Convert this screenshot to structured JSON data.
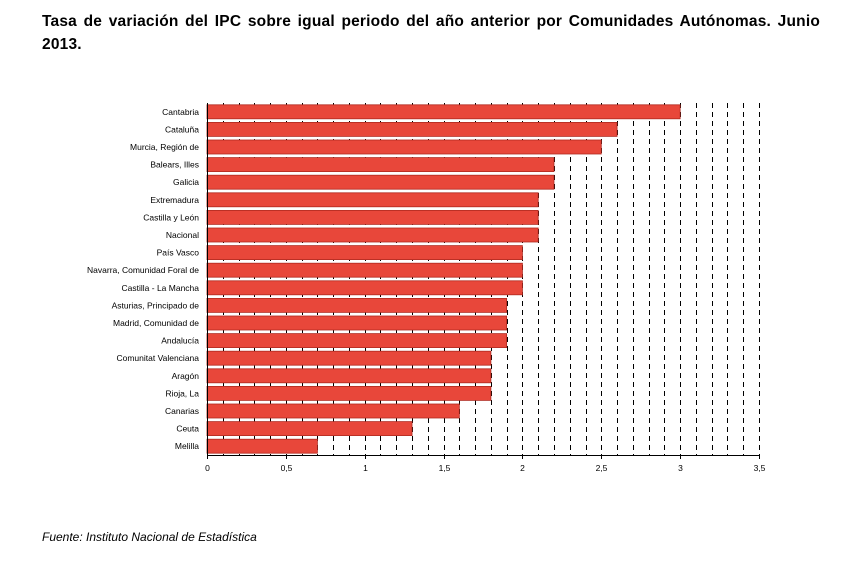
{
  "title": "Tasa de variación del IPC sobre igual periodo del año anterior por Comunidades Autónomas. Junio 2013.",
  "source": "Fuente: Instituto Nacional de Estadística",
  "chart_data": {
    "type": "bar",
    "orientation": "horizontal",
    "categories": [
      "Cantabria",
      "Cataluña",
      "Murcia, Región de",
      "Balears, Illes",
      "Galicia",
      "Extremadura",
      "Castilla y León",
      "Nacional",
      "País Vasco",
      "Navarra, Comunidad Foral de",
      "Castilla - La Mancha",
      "Asturias, Principado de",
      "Madrid, Comunidad de",
      "Andalucía",
      "Comunitat Valenciana",
      "Aragón",
      "Rioja, La",
      "Canarias",
      "Ceuta",
      "Melilla"
    ],
    "values": [
      3.0,
      2.6,
      2.5,
      2.2,
      2.2,
      2.1,
      2.1,
      2.1,
      2.0,
      2.0,
      2.0,
      1.9,
      1.9,
      1.9,
      1.8,
      1.8,
      1.8,
      1.6,
      1.3,
      0.7
    ],
    "xlim": [
      0,
      3.5
    ],
    "xticks": [
      0,
      0.5,
      1,
      1.5,
      2,
      2.5,
      3,
      3.5
    ],
    "xtick_labels": [
      "0",
      "0,5",
      "1",
      "1,5",
      "2",
      "2,5",
      "3",
      "3,5"
    ],
    "grid": "vertical dashed",
    "bar_color": "#e8473a",
    "bar_edge_color": "#b02a20"
  }
}
